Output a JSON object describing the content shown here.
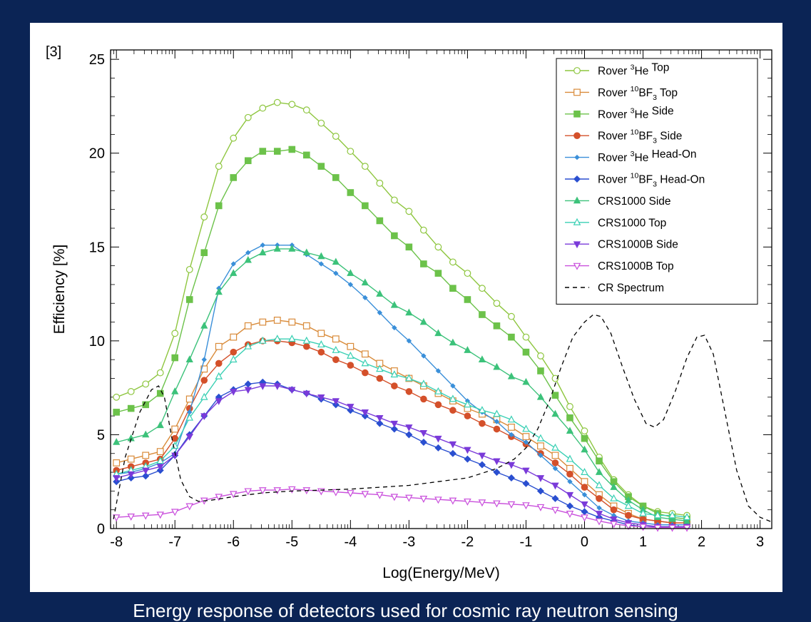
{
  "ref_label": "[3]",
  "caption": "Energy response of detectors used for cosmic ray neutron sensing",
  "chart_data": {
    "type": "line",
    "title": "",
    "xlabel": "Log(Energy/MeV)",
    "ylabel": "Efficiency [%]",
    "xlim": [
      -8.1,
      3.2
    ],
    "ylim": [
      0,
      25.5
    ],
    "xticks": [
      -8,
      -7,
      -6,
      -5,
      -4,
      -3,
      -2,
      -1,
      0,
      1,
      2,
      3
    ],
    "yticks": [
      0,
      5,
      10,
      15,
      20,
      25
    ],
    "log_minor_ticks": true,
    "grid": false,
    "legend_position": "top-right",
    "x": [
      -8,
      -7.75,
      -7.5,
      -7.25,
      -7,
      -6.75,
      -6.5,
      -6.25,
      -6,
      -5.75,
      -5.5,
      -5.25,
      -5,
      -4.75,
      -4.5,
      -4.25,
      -4,
      -3.75,
      -3.5,
      -3.25,
      -3,
      -2.75,
      -2.5,
      -2.25,
      -2,
      -1.75,
      -1.5,
      -1.25,
      -1,
      -0.75,
      -0.5,
      -0.25,
      0,
      0.25,
      0.5,
      0.75,
      1,
      1.25,
      1.5,
      1.75
    ],
    "series": [
      {
        "name": "Rover 3He Top",
        "name_pre": "Rover ",
        "name_sup": "3",
        "name_mid": "He",
        "name_sub": "",
        "name_post": " Top",
        "color": "#8ec63f",
        "marker": "circle-open",
        "values": [
          7.0,
          7.3,
          7.7,
          8.3,
          10.4,
          13.8,
          16.6,
          19.3,
          20.8,
          21.9,
          22.4,
          22.7,
          22.6,
          22.3,
          21.6,
          20.9,
          20.1,
          19.3,
          18.4,
          17.5,
          16.9,
          15.9,
          15.0,
          14.2,
          13.6,
          12.8,
          12.0,
          11.3,
          10.2,
          9.2,
          8.0,
          6.5,
          5.2,
          3.8,
          2.6,
          1.8,
          1.2,
          0.9,
          0.8,
          0.7
        ]
      },
      {
        "name": "Rover 10BF3 Top",
        "name_pre": "Rover ",
        "name_sup": "10",
        "name_mid": "BF",
        "name_sub": "3",
        "name_post": " Top",
        "color": "#d98b3a",
        "marker": "square-open",
        "values": [
          3.5,
          3.7,
          3.9,
          4.1,
          5.3,
          6.9,
          8.5,
          9.7,
          10.2,
          10.8,
          11.0,
          11.1,
          11.0,
          10.8,
          10.4,
          10.1,
          9.7,
          9.3,
          8.8,
          8.4,
          8.0,
          7.6,
          7.2,
          6.8,
          6.4,
          6.1,
          5.8,
          5.4,
          4.9,
          4.4,
          3.9,
          3.2,
          2.5,
          1.8,
          1.2,
          0.8,
          0.5,
          0.4,
          0.3,
          0.3
        ]
      },
      {
        "name": "Rover 3He Side",
        "name_pre": "Rover ",
        "name_sup": "3",
        "name_mid": "He",
        "name_sub": "",
        "name_post": " Side",
        "color": "#6cc24a",
        "marker": "square-filled",
        "values": [
          6.2,
          6.4,
          6.6,
          7.2,
          9.1,
          12.2,
          14.7,
          17.2,
          18.7,
          19.6,
          20.1,
          20.1,
          20.2,
          19.9,
          19.3,
          18.7,
          17.9,
          17.2,
          16.4,
          15.6,
          15.0,
          14.1,
          13.6,
          12.8,
          12.2,
          11.4,
          10.8,
          10.2,
          9.4,
          8.4,
          7.1,
          5.9,
          4.8,
          3.6,
          2.5,
          1.7,
          1.2,
          0.8,
          0.6,
          0.5
        ]
      },
      {
        "name": "Rover 10BF3 Side",
        "name_pre": "Rover ",
        "name_sup": "10",
        "name_mid": "BF",
        "name_sub": "3",
        "name_post": " Side",
        "color": "#d4502a",
        "marker": "circle-filled",
        "values": [
          3.1,
          3.3,
          3.5,
          3.7,
          4.8,
          6.4,
          7.9,
          8.8,
          9.4,
          9.8,
          10.0,
          10.0,
          9.9,
          9.7,
          9.4,
          9.0,
          8.7,
          8.3,
          8.0,
          7.6,
          7.3,
          6.9,
          6.6,
          6.3,
          6.0,
          5.6,
          5.3,
          4.9,
          4.5,
          4.0,
          3.5,
          2.9,
          2.2,
          1.6,
          1.0,
          0.7,
          0.5,
          0.4,
          0.3,
          0.3
        ]
      },
      {
        "name": "Rover 3He Head-On",
        "name_pre": "Rover ",
        "name_sup": "3",
        "name_mid": "He",
        "name_sub": "",
        "name_post": " Head-On",
        "color": "#3a8fd9",
        "marker": "diamond-small",
        "values": [
          2.9,
          3.0,
          3.2,
          3.5,
          4.0,
          6.2,
          9.0,
          12.8,
          14.1,
          14.7,
          15.1,
          15.1,
          15.1,
          14.6,
          14.1,
          13.6,
          13.0,
          12.3,
          11.5,
          10.7,
          10.0,
          9.2,
          8.4,
          7.6,
          6.8,
          6.2,
          5.7,
          5.0,
          4.6,
          3.9,
          3.2,
          2.5,
          1.8,
          1.1,
          0.7,
          0.4,
          0.3,
          0.2,
          0.2,
          0.2
        ]
      },
      {
        "name": "Rover 10BF3 Head-On",
        "name_pre": "Rover ",
        "name_sup": "10",
        "name_mid": "BF",
        "name_sub": "3",
        "name_post": " Head-On",
        "color": "#2a4fd0",
        "marker": "diamond",
        "values": [
          2.5,
          2.7,
          2.8,
          3.1,
          3.9,
          5.0,
          6.0,
          7.0,
          7.4,
          7.7,
          7.8,
          7.7,
          7.4,
          7.2,
          6.9,
          6.6,
          6.3,
          6.0,
          5.6,
          5.3,
          5.0,
          4.6,
          4.3,
          4.0,
          3.7,
          3.4,
          3.0,
          2.7,
          2.4,
          2.0,
          1.6,
          1.2,
          0.9,
          0.6,
          0.4,
          0.2,
          0.1,
          0.1,
          0.1,
          0.1
        ]
      },
      {
        "name": "CRS1000 Side",
        "name_pre": "CRS1000 Side",
        "name_sup": "",
        "name_mid": "",
        "name_sub": "",
        "name_post": "",
        "color": "#3cc27a",
        "marker": "triangle-up-filled",
        "values": [
          4.6,
          4.8,
          5.0,
          5.5,
          7.3,
          9.0,
          10.8,
          12.6,
          13.6,
          14.3,
          14.7,
          14.9,
          14.9,
          14.7,
          14.5,
          14.2,
          13.6,
          13.1,
          12.5,
          11.9,
          11.5,
          11.0,
          10.4,
          9.9,
          9.5,
          9.0,
          8.6,
          8.1,
          7.8,
          7.0,
          6.1,
          5.2,
          4.2,
          3.0,
          2.2,
          1.5,
          1.0,
          0.6,
          0.5,
          0.4
        ]
      },
      {
        "name": "CRS1000 Top",
        "name_pre": "CRS1000 Top",
        "name_sup": "",
        "name_mid": "",
        "name_sub": "",
        "name_post": "",
        "color": "#3ad0b4",
        "marker": "triangle-up-open",
        "values": [
          2.9,
          3.1,
          3.3,
          3.6,
          4.4,
          5.9,
          7.0,
          8.1,
          9.0,
          9.7,
          10.0,
          10.1,
          10.1,
          10.0,
          9.8,
          9.5,
          9.2,
          8.8,
          8.5,
          8.2,
          8.0,
          7.7,
          7.3,
          6.9,
          6.6,
          6.3,
          6.1,
          5.8,
          5.3,
          4.8,
          4.3,
          3.7,
          3.0,
          2.3,
          1.6,
          1.2,
          0.8,
          0.7,
          0.7,
          0.6
        ]
      },
      {
        "name": "CRS1000B Side",
        "name_pre": "CRS1000B Side",
        "name_sup": "",
        "name_mid": "",
        "name_sub": "",
        "name_post": "",
        "color": "#7a3ad9",
        "marker": "triangle-down-filled",
        "values": [
          2.7,
          2.9,
          3.1,
          3.3,
          3.9,
          4.9,
          6.0,
          6.8,
          7.3,
          7.4,
          7.6,
          7.6,
          7.4,
          7.2,
          7.0,
          6.8,
          6.5,
          6.2,
          5.9,
          5.6,
          5.4,
          5.1,
          4.8,
          4.5,
          4.2,
          3.9,
          3.6,
          3.4,
          3.1,
          2.7,
          2.3,
          1.8,
          1.3,
          0.8,
          0.5,
          0.3,
          0.2,
          0.1,
          0.1,
          0.1
        ]
      },
      {
        "name": "CRS1000B Top",
        "name_pre": "CRS1000B Top",
        "name_sup": "",
        "name_mid": "",
        "name_sub": "",
        "name_post": "",
        "color": "#c94fdc",
        "marker": "triangle-down-open",
        "values": [
          0.6,
          0.65,
          0.7,
          0.75,
          0.9,
          1.2,
          1.5,
          1.7,
          1.85,
          2.0,
          2.05,
          2.05,
          2.1,
          2.05,
          2.0,
          1.95,
          1.9,
          1.85,
          1.8,
          1.7,
          1.65,
          1.6,
          1.55,
          1.5,
          1.45,
          1.4,
          1.35,
          1.3,
          1.25,
          1.15,
          1.0,
          0.8,
          0.6,
          0.4,
          0.25,
          0.15,
          0.1,
          0.05,
          0.05,
          0.05
        ]
      },
      {
        "name": "CR Spectrum",
        "name_pre": "CR Spectrum",
        "name_sup": "",
        "name_mid": "",
        "name_sub": "",
        "name_post": "",
        "color": "#000000",
        "marker": "none",
        "dash": true,
        "x": [
          -8.05,
          -7.85,
          -7.6,
          -7.4,
          -7.28,
          -7.18,
          -7.05,
          -6.9,
          -6.75,
          -6.6,
          -6.4,
          -6.0,
          -5.5,
          -5.0,
          -4.5,
          -4.0,
          -3.5,
          -3.0,
          -2.5,
          -2.0,
          -1.5,
          -1.2,
          -1.0,
          -0.8,
          -0.6,
          -0.4,
          -0.2,
          0.0,
          0.15,
          0.28,
          0.45,
          0.65,
          0.85,
          1.05,
          1.2,
          1.35,
          1.55,
          1.75,
          1.92,
          2.05,
          2.2,
          2.4,
          2.6,
          2.8,
          3.0,
          3.2
        ],
        "values": [
          0.5,
          3.8,
          6.2,
          7.4,
          7.6,
          7.0,
          4.8,
          2.6,
          1.7,
          1.45,
          1.5,
          1.7,
          1.9,
          2.0,
          2.05,
          2.1,
          2.2,
          2.3,
          2.5,
          2.7,
          3.2,
          3.7,
          4.3,
          5.3,
          6.8,
          8.6,
          10.2,
          11.0,
          11.4,
          11.3,
          10.4,
          8.6,
          6.9,
          5.6,
          5.4,
          5.8,
          7.3,
          9.1,
          10.2,
          10.3,
          9.3,
          6.2,
          3.1,
          1.2,
          0.6,
          0.35
        ]
      }
    ]
  }
}
